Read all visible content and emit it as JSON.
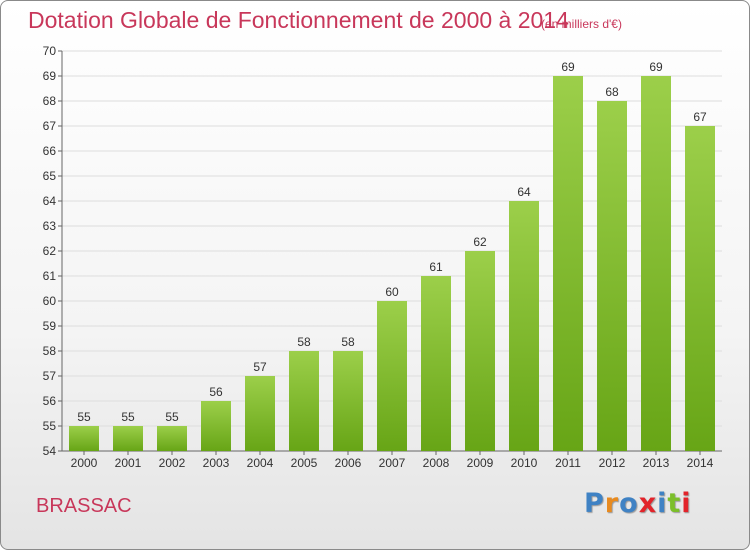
{
  "header": {
    "title": "Dotation Globale de Fonctionnement de 2000 à 2014",
    "unit": "(en milliers d'€)"
  },
  "footer": {
    "place": "BRASSAC",
    "logo": "Proxiti"
  },
  "colors": {
    "title": "#c8375a",
    "bar_light": "#9ccf4a",
    "bar_dark": "#67a516",
    "grid": "#dddddd",
    "logo_letters": [
      "#3f82c4",
      "#e88a1e",
      "#3f82c4",
      "#e2232a",
      "#3f82c4",
      "#7cbf2a",
      "#e2232a"
    ]
  },
  "chart_data": {
    "type": "bar",
    "categories": [
      "2000",
      "2001",
      "2002",
      "2003",
      "2004",
      "2005",
      "2006",
      "2007",
      "2008",
      "2009",
      "2010",
      "2011",
      "2012",
      "2013",
      "2014"
    ],
    "values": [
      55,
      55,
      55,
      56,
      57,
      58,
      58,
      60,
      61,
      62,
      64,
      69,
      68,
      69,
      67
    ],
    "title": "Dotation Globale de Fonctionnement de 2000 à 2014",
    "ylabel": "",
    "xlabel": "",
    "ylim": [
      54,
      70
    ],
    "yticks": [
      54,
      55,
      56,
      57,
      58,
      59,
      60,
      61,
      62,
      63,
      64,
      65,
      66,
      67,
      68,
      69,
      70
    ],
    "grid": true,
    "data_labels": true
  }
}
